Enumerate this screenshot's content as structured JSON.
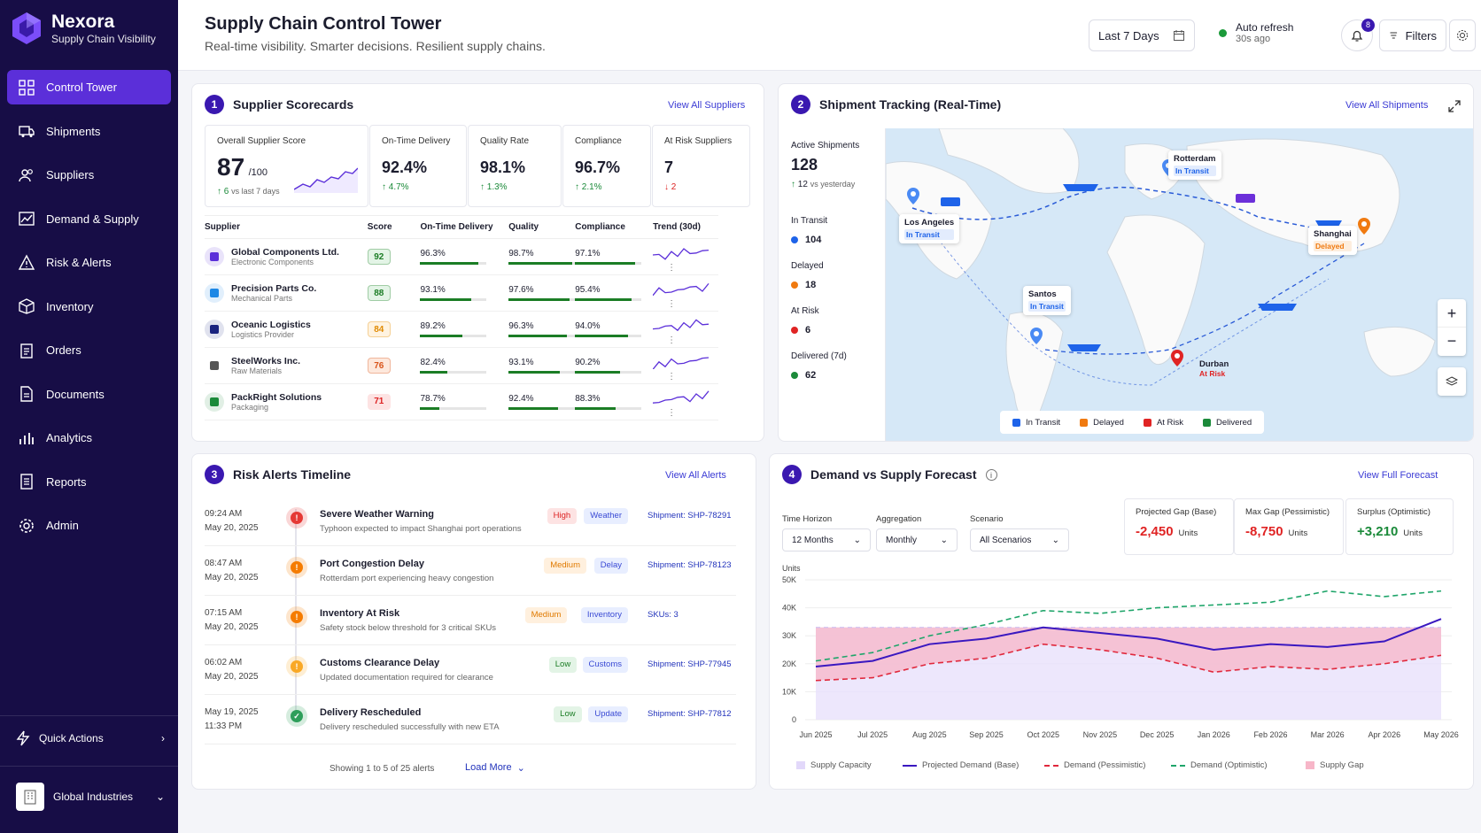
{
  "brand": {
    "name": "Nexora",
    "sub": "Supply Chain Visibility"
  },
  "nav": [
    {
      "label": "Control Tower",
      "icon": "grid-icon"
    },
    {
      "label": "Shipments",
      "icon": "truck-icon"
    },
    {
      "label": "Suppliers",
      "icon": "users-icon"
    },
    {
      "label": "Demand & Supply",
      "icon": "chart-icon"
    },
    {
      "label": "Risk & Alerts",
      "icon": "warning-icon"
    },
    {
      "label": "Inventory",
      "icon": "box-icon"
    },
    {
      "label": "Orders",
      "icon": "clipboard-icon"
    },
    {
      "label": "Documents",
      "icon": "document-icon"
    },
    {
      "label": "Analytics",
      "icon": "bars-icon"
    },
    {
      "label": "Reports",
      "icon": "report-icon"
    },
    {
      "label": "Admin",
      "icon": "gear-icon"
    }
  ],
  "quick_actions": "Quick Actions",
  "org": "Global Industries",
  "header": {
    "title": "Supply Chain Control Tower",
    "subtitle": "Real-time visibility. Smarter decisions. Resilient supply chains.",
    "date_range": "Last 7 Days",
    "auto_refresh": "Auto refresh",
    "refresh_ago": "30s ago",
    "notif_count": "8",
    "filters": "Filters"
  },
  "suppliers": {
    "num": "1",
    "title": "Supplier Scorecards",
    "link": "View All Suppliers",
    "kpis": {
      "overall_label": "Overall Supplier Score",
      "overall_value": "87",
      "overall_denom": "/100",
      "overall_delta": "6",
      "overall_delta_note": "vs last 7 days",
      "otd_label": "On-Time Delivery",
      "otd_value": "92.4%",
      "otd_delta": "4.7%",
      "quality_label": "Quality Rate",
      "quality_value": "98.1%",
      "quality_delta": "1.3%",
      "compliance_label": "Compliance",
      "compliance_value": "96.7%",
      "compliance_delta": "2.1%",
      "risk_label": "At Risk Suppliers",
      "risk_value": "7",
      "risk_delta": "2"
    },
    "columns": [
      "Supplier",
      "Score",
      "On-Time Delivery",
      "Quality",
      "Compliance",
      "Trend (30d)"
    ],
    "rows": [
      {
        "name": "Global Components Ltd.",
        "type": "Electronic Components",
        "score": "92",
        "otd": "96.3%",
        "otd_n": 96.3,
        "quality": "98.7%",
        "quality_n": 98.7,
        "compliance": "97.1%",
        "compliance_n": 97.1,
        "level": "good",
        "icon_color": "#5b2fd9"
      },
      {
        "name": "Precision Parts Co.",
        "type": "Mechanical Parts",
        "score": "88",
        "otd": "93.1%",
        "otd_n": 93.1,
        "quality": "97.6%",
        "quality_n": 97.6,
        "compliance": "95.4%",
        "compliance_n": 95.4,
        "level": "good",
        "icon_color": "#1e88e5"
      },
      {
        "name": "Oceanic Logistics",
        "type": "Logistics Provider",
        "score": "84",
        "otd": "89.2%",
        "otd_n": 89.2,
        "quality": "96.3%",
        "quality_n": 96.3,
        "compliance": "94.0%",
        "compliance_n": 94.0,
        "level": "mid",
        "icon_color": "#1a237e"
      },
      {
        "name": "SteelWorks Inc.",
        "type": "Raw Materials",
        "score": "76",
        "otd": "82.4%",
        "otd_n": 82.4,
        "quality": "93.1%",
        "quality_n": 93.1,
        "compliance": "90.2%",
        "compliance_n": 90.2,
        "level": "warn",
        "icon_color": "#555"
      },
      {
        "name": "PackRight Solutions",
        "type": "Packaging",
        "score": "71",
        "otd": "78.7%",
        "otd_n": 78.7,
        "quality": "92.4%",
        "quality_n": 92.4,
        "compliance": "88.3%",
        "compliance_n": 88.3,
        "level": "bad",
        "icon_color": "#1b8a3a"
      }
    ]
  },
  "shipments": {
    "num": "2",
    "title": "Shipment Tracking (Real-Time)",
    "link": "View All Shipments",
    "active_label": "Active Shipments",
    "active_value": "128",
    "active_delta": "12",
    "active_delta_note": "vs yesterday",
    "stats": [
      {
        "label": "In Transit",
        "value": "104",
        "color": "#1e63e9"
      },
      {
        "label": "Delayed",
        "value": "18",
        "color": "#f07a10"
      },
      {
        "label": "At Risk",
        "value": "6",
        "color": "#e02424"
      },
      {
        "label": "Delivered (7d)",
        "value": "62",
        "color": "#1b8a3a"
      }
    ],
    "ports": [
      {
        "name": "Rotterdam",
        "status": "In Transit"
      },
      {
        "name": "Los Angeles",
        "status": "In Transit"
      },
      {
        "name": "Shanghai",
        "status": "Delayed"
      },
      {
        "name": "Santos",
        "status": "In Transit"
      },
      {
        "name": "Durban",
        "status": "At Risk"
      }
    ],
    "legend": [
      "In Transit",
      "Delayed",
      "At Risk",
      "Delivered"
    ]
  },
  "alerts": {
    "num": "3",
    "title": "Risk Alerts Timeline",
    "link": "View All Alerts",
    "items": [
      {
        "time": "09:24 AM",
        "date": "May 20, 2025",
        "title": "Severe Weather Warning",
        "desc": "Typhoon expected to impact Shanghai port operations",
        "sev": "High",
        "cat": "Weather",
        "ref": "Shipment: SHP-78291",
        "color": "#e53935"
      },
      {
        "time": "08:47 AM",
        "date": "May 20, 2025",
        "title": "Port Congestion Delay",
        "desc": "Rotterdam port experiencing heavy congestion",
        "sev": "Medium",
        "cat": "Delay",
        "ref": "Shipment: SHP-78123",
        "color": "#f57c00"
      },
      {
        "time": "07:15 AM",
        "date": "May 20, 2025",
        "title": "Inventory At Risk",
        "desc": "Safety stock below threshold for 3 critical SKUs",
        "sev": "Medium",
        "cat": "Inventory",
        "ref": "SKUs: 3",
        "color": "#f57c00"
      },
      {
        "time": "06:02 AM",
        "date": "May 20, 2025",
        "title": "Customs Clearance Delay",
        "desc": "Updated documentation required for clearance",
        "sev": "Low",
        "cat": "Customs",
        "ref": "Shipment: SHP-77945",
        "color": "#f9a825"
      },
      {
        "time": "May 19, 2025",
        "date": "11:33 PM",
        "title": "Delivery Rescheduled",
        "desc": "Delivery rescheduled successfully with new ETA",
        "sev": "Low",
        "cat": "Update",
        "ref": "Shipment: SHP-77812",
        "color": "#2e9e5a"
      }
    ],
    "footer": "Showing 1 to 5 of 25 alerts",
    "load_more": "Load More"
  },
  "forecast": {
    "num": "4",
    "title": "Demand vs Supply Forecast",
    "link": "View Full Forecast",
    "filters": [
      {
        "label": "Time Horizon",
        "value": "12 Months"
      },
      {
        "label": "Aggregation",
        "value": "Monthly"
      },
      {
        "label": "Scenario",
        "value": "All Scenarios"
      }
    ],
    "gaps": [
      {
        "label": "Projected Gap (Base)",
        "value": "-2,450",
        "unit": "Units",
        "color": "#e02424"
      },
      {
        "label": "Max Gap (Pessimistic)",
        "value": "-8,750",
        "unit": "Units",
        "color": "#e02424"
      },
      {
        "label": "Surplus (Optimistic)",
        "value": "+3,210",
        "unit": "Units",
        "color": "#1b8a3a"
      }
    ],
    "legend": [
      "Supply Capacity",
      "Projected Demand (Base)",
      "Demand (Pessimistic)",
      "Demand (Optimistic)",
      "Supply Gap"
    ]
  },
  "chart_data": {
    "type": "line",
    "ylabel": "Units",
    "ylim": [
      0,
      50000
    ],
    "yticks": [
      "0",
      "10K",
      "20K",
      "30K",
      "40K",
      "50K"
    ],
    "categories": [
      "Jun 2025",
      "Jul 2025",
      "Aug 2025",
      "Sep 2025",
      "Oct 2025",
      "Nov 2025",
      "Dec 2025",
      "Jan 2026",
      "Feb 2026",
      "Mar 2026",
      "Apr 2026",
      "May 2026"
    ],
    "series": [
      {
        "name": "Supply Capacity",
        "values": [
          33000,
          33000,
          33000,
          33000,
          33000,
          33000,
          33000,
          33000,
          33000,
          33000,
          33000,
          33000
        ]
      },
      {
        "name": "Projected Demand (Base)",
        "values": [
          19000,
          21000,
          27000,
          29000,
          33000,
          31000,
          29000,
          25000,
          27000,
          26000,
          28000,
          36000
        ]
      },
      {
        "name": "Demand (Pessimistic)",
        "values": [
          14000,
          15000,
          20000,
          22000,
          27000,
          25000,
          22000,
          17000,
          19000,
          18000,
          20000,
          23000
        ]
      },
      {
        "name": "Demand (Optimistic)",
        "values": [
          21000,
          24000,
          30000,
          34000,
          39000,
          38000,
          40000,
          41000,
          42000,
          46000,
          44000,
          46000
        ]
      }
    ]
  }
}
